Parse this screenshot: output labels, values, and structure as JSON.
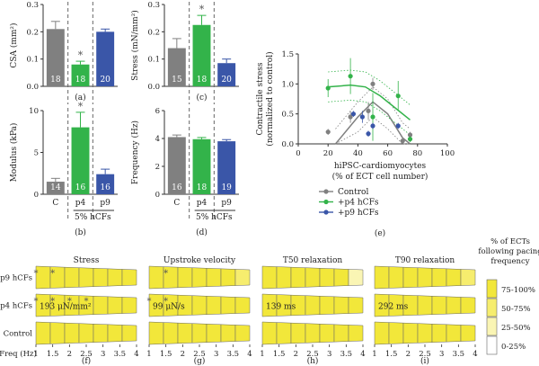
{
  "colors": {
    "gray": "#808080",
    "green": "#33b34a",
    "blue": "#3a56a8",
    "yellow": "#f2e73a",
    "band1": "#f2e73a",
    "band2": "#f6ed6e",
    "band3": "#faf5b4",
    "band4": "#ffffff"
  },
  "chart_data": [
    {
      "panel": "(a)",
      "type": "bar",
      "ylabel": "CSA (mm²)",
      "ylim": [
        0,
        0.3
      ],
      "yticks": [
        "0.0",
        "0.1",
        "0.2",
        "0.3"
      ],
      "bars": [
        {
          "value": 0.21,
          "err": 0.028,
          "n": "18",
          "color": "gray",
          "star": false
        },
        {
          "value": 0.08,
          "err": 0.012,
          "n": "18",
          "color": "green",
          "star": true
        },
        {
          "value": 0.2,
          "err": 0.01,
          "n": "20",
          "color": "blue",
          "star": false
        }
      ]
    },
    {
      "panel": "(c)",
      "type": "bar",
      "ylabel": "Stress (mN/mm²)",
      "ylim": [
        0,
        0.3
      ],
      "yticks": [
        "0.0",
        "0.1",
        "0.2",
        "0.3"
      ],
      "bars": [
        {
          "value": 0.14,
          "err": 0.035,
          "n": "15",
          "color": "gray",
          "star": false
        },
        {
          "value": 0.225,
          "err": 0.035,
          "n": "18",
          "color": "green",
          "star": true
        },
        {
          "value": 0.085,
          "err": 0.015,
          "n": "20",
          "color": "blue",
          "star": false
        }
      ]
    },
    {
      "panel": "(b)",
      "type": "bar",
      "ylabel": "Modulus (kPa)",
      "ylim": [
        0,
        10
      ],
      "yticks": [
        "0",
        "5",
        "10"
      ],
      "categories": [
        "C",
        "p4",
        "p9"
      ],
      "group_label": "5% hCFs",
      "bars": [
        {
          "value": 1.5,
          "err": 0.4,
          "n": "14",
          "color": "gray",
          "star": false
        },
        {
          "value": 8.0,
          "err": 1.8,
          "n": "16",
          "color": "green",
          "star": true
        },
        {
          "value": 2.4,
          "err": 0.6,
          "n": "16",
          "color": "blue",
          "star": false
        }
      ]
    },
    {
      "panel": "(d)",
      "type": "bar",
      "ylabel": "Frequency (Hz)",
      "ylim": [
        0,
        6
      ],
      "yticks": [
        "0",
        "2",
        "4",
        "6"
      ],
      "categories": [
        "C",
        "p4",
        "p9"
      ],
      "group_label": "5% hCFs",
      "bars": [
        {
          "value": 4.1,
          "err": 0.15,
          "n": "16",
          "color": "gray",
          "star": false
        },
        {
          "value": 3.95,
          "err": 0.12,
          "n": "18",
          "color": "green",
          "star": false
        },
        {
          "value": 3.8,
          "err": 0.12,
          "n": "19",
          "color": "blue",
          "star": false
        }
      ]
    },
    {
      "panel": "(e)",
      "type": "scatter",
      "ylabel": "Contractile stress (normalized to control)",
      "xlabel": "hiPSC-cardiomyocytes (% of ECT cell number)",
      "xlim": [
        0,
        100
      ],
      "ylim": [
        0,
        1.5
      ],
      "xticks": [
        "0",
        "20",
        "40",
        "60",
        "80",
        "100"
      ],
      "yticks": [
        "0.0",
        "0.5",
        "1.0",
        "1.5"
      ],
      "series": [
        {
          "name": "Control",
          "color": "gray",
          "points": [
            [
              20,
              0.2,
              0.05
            ],
            [
              35,
              0.45,
              0.1
            ],
            [
              47,
              0.55,
              0.15
            ],
            [
              50,
              1.0,
              0.1
            ],
            [
              70,
              0.05,
              0.05
            ],
            [
              75,
              0.15,
              0.05
            ]
          ]
        },
        {
          "name": "+p4 hCFs",
          "color": "green",
          "points": [
            [
              20,
              0.93,
              0.15
            ],
            [
              35,
              1.13,
              0.3
            ],
            [
              50,
              0.45,
              0.4
            ],
            [
              67,
              0.8,
              0.25
            ],
            [
              75,
              0.08,
              0.05
            ]
          ]
        },
        {
          "name": "+p9 hCFs",
          "color": "blue",
          "points": [
            [
              37,
              0.5,
              0.05
            ],
            [
              43,
              0.45,
              0.1
            ],
            [
              47,
              0.17,
              0.05
            ],
            [
              50,
              0.3,
              0.05
            ],
            [
              67,
              0.3,
              0.05
            ]
          ]
        }
      ],
      "fits": [
        {
          "color": "gray",
          "pts": [
            [
              25,
              0.0
            ],
            [
              40,
              0.45
            ],
            [
              50,
              0.7
            ],
            [
              60,
              0.5
            ],
            [
              70,
              0.1
            ],
            [
              75,
              0.0
            ]
          ]
        },
        {
          "color": "green",
          "pts": [
            [
              20,
              0.95
            ],
            [
              35,
              0.98
            ],
            [
              45,
              0.95
            ],
            [
              55,
              0.8
            ],
            [
              65,
              0.6
            ],
            [
              75,
              0.4
            ]
          ]
        }
      ]
    },
    {
      "type": "heatmap",
      "ylabels": [
        "p9 hCFs",
        "p4 hCFs",
        "Control"
      ],
      "xlabel": "Freq (Hz)",
      "xticks": [
        "1",
        "1.5",
        "2",
        "2.5",
        "3",
        "3.5",
        "4"
      ],
      "legend_title": [
        "% of ECTs",
        "following pacing",
        "frequency"
      ],
      "legend_labels": [
        "75-100%",
        "50-75%",
        "25-50%",
        "0-25%"
      ],
      "panels": [
        {
          "title": "Stress",
          "label": "(f)",
          "note": "193 μN/mm²",
          "note_row": 1,
          "rows": [
            [
              1,
              1,
              1,
              1,
              1,
              1,
              1
            ],
            [
              1,
              1,
              1,
              1,
              1,
              1,
              1
            ],
            [
              1,
              1,
              1,
              1,
              1,
              1,
              1
            ]
          ],
          "stars": [
            [
              0,
              1,
              1.5
            ],
            [
              1,
              1,
              1.5,
              2,
              2.5
            ]
          ]
        },
        {
          "title": "Upstroke velocity",
          "label": "(g)",
          "note": "99 μN/s",
          "note_row": 1,
          "rows": [
            [
              1,
              1,
              1,
              1,
              1,
              1,
              2
            ],
            [
              1,
              1,
              1,
              1,
              1,
              1,
              1
            ],
            [
              1,
              1,
              1,
              1,
              1,
              1,
              1
            ]
          ],
          "stars": [
            [
              0,
              1.5
            ],
            [
              1,
              1,
              1.5
            ]
          ]
        },
        {
          "title": "T50 relaxation",
          "label": "(h)",
          "note": "139 ms",
          "note_row": 1,
          "rows": [
            [
              1,
              1,
              1,
              1,
              1,
              1,
              3
            ],
            [
              1,
              1,
              1,
              1,
              1,
              1,
              1
            ],
            [
              1,
              1,
              1,
              1,
              1,
              1,
              1
            ]
          ],
          "stars": []
        },
        {
          "title": "T90 relaxation",
          "label": "(i)",
          "note": "292 ms",
          "note_row": 1,
          "rows": [
            [
              1,
              1,
              1,
              1,
              1,
              1,
              2
            ],
            [
              1,
              1,
              1,
              1,
              1,
              1,
              1
            ],
            [
              1,
              1,
              1,
              1,
              1,
              1,
              1
            ]
          ],
          "stars": []
        }
      ]
    }
  ]
}
